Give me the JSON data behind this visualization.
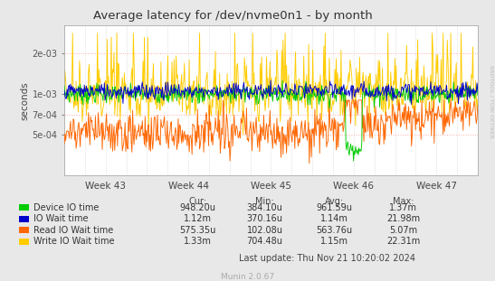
{
  "title": "Average latency for /dev/nvme0n1 - by month",
  "ylabel": "seconds",
  "bg_color": "#e8e8e8",
  "plot_bg_color": "#ffffff",
  "week_labels": [
    "Week 43",
    "Week 44",
    "Week 45",
    "Week 46",
    "Week 47"
  ],
  "yticks": [
    0.0005,
    0.0007,
    0.001,
    0.002
  ],
  "ylim_low": 0.00025,
  "ylim_high": 0.0032,
  "colors": {
    "device_io": "#00cc00",
    "io_wait": "#0000cc",
    "read_io": "#ff6600",
    "write_io": "#ffcc00"
  },
  "legend": [
    {
      "label": "Device IO time",
      "color": "#00cc00"
    },
    {
      "label": "IO Wait time",
      "color": "#0000cc"
    },
    {
      "label": "Read IO Wait time",
      "color": "#ff6600"
    },
    {
      "label": "Write IO Wait time",
      "color": "#ffcc00"
    }
  ],
  "stats_headers": [
    "Cur:",
    "Min:",
    "Avg:",
    "Max:"
  ],
  "stats_rows": [
    [
      "948.20u",
      "384.10u",
      "961.59u",
      "1.37m"
    ],
    [
      "1.12m",
      "370.16u",
      "1.14m",
      "21.98m"
    ],
    [
      "575.35u",
      "102.08u",
      "563.76u",
      "5.07m"
    ],
    [
      "1.33m",
      "704.48u",
      "1.15m",
      "22.31m"
    ]
  ],
  "last_update": "Last update: Thu Nov 21 10:20:02 2024",
  "munin_version": "Munin 2.0.67",
  "rrdtool_label": "RRDTOOL / TOBI OETIKER",
  "n_points": 600
}
